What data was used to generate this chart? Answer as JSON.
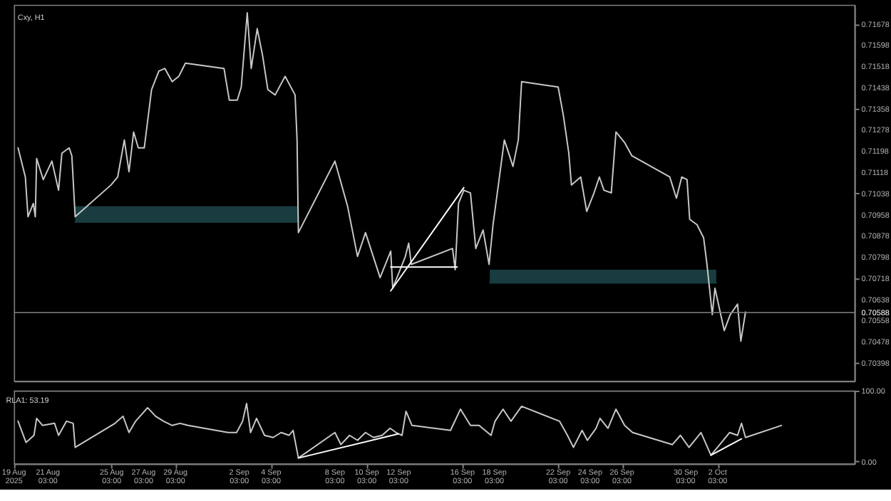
{
  "chart_data": [
    {
      "type": "line",
      "title": "Cxy, H1",
      "xlim": [
        "2025-08-19T00:00",
        "2025-10-10T17:00"
      ],
      "ylim": [
        0.7033,
        0.7175
      ],
      "yticks": [
        0.71678,
        0.71598,
        0.71518,
        0.71438,
        0.71358,
        0.71278,
        0.71198,
        0.71118,
        0.71038,
        0.70958,
        0.70878,
        0.70798,
        0.70718,
        0.70638,
        0.70558,
        0.70478,
        0.70398
      ],
      "tick_labels": "y",
      "grid": false,
      "ref_lines": [
        {
          "axis": "y",
          "value": 0.70588,
          "label": "0.70588",
          "color": "#808080"
        }
      ],
      "series": [
        {
          "color": "#183c40",
          "x": [
            "2025-08-22T20:00",
            "2025-09-05T20:00"
          ],
          "values": [
            0.7093,
            0.7093
          ],
          "lower": [
            0.7093,
            0.7093
          ],
          "upper": [
            0.7099,
            0.7099
          ]
        },
        {
          "color": "#183c40",
          "x": [
            "2025-09-17T20:00",
            "2025-10-02T01:00"
          ],
          "values": [
            0.707,
            0.707
          ],
          "lower": [
            0.707,
            0.707
          ],
          "upper": [
            0.7075,
            0.7075
          ]
        },
        {
          "color": "#c8c8c8",
          "x": [
            "2025-08-19T06:00",
            "2025-08-19T17:00",
            "2025-08-19T21:00",
            "2025-08-20T05:00",
            "2025-08-20T08:00",
            "2025-08-20T10:00",
            "2025-08-20T20:00",
            "2025-08-21T09:00",
            "2025-08-21T19:00",
            "2025-08-22T00:00",
            "2025-08-22T11:00",
            "2025-08-22T15:00",
            "2025-08-22T20:00",
            "2025-08-25T02:00",
            "2025-08-25T12:00",
            "2025-08-25T22:00",
            "2025-08-26T05:00",
            "2025-08-26T12:00",
            "2025-08-26T19:00",
            "2025-08-27T04:00",
            "2025-08-27T15:00",
            "2025-08-28T02:00",
            "2025-08-28T11:00",
            "2025-08-28T22:00",
            "2025-08-29T08:00",
            "2025-08-29T18:00",
            "2025-09-01T04:00",
            "2025-09-01T12:00",
            "2025-09-02T00:00",
            "2025-09-02T06:00",
            "2025-09-02T15:00",
            "2025-09-02T21:00",
            "2025-09-03T06:00",
            "2025-09-03T14:00",
            "2025-09-03T22:00",
            "2025-09-04T09:00",
            "2025-09-05T00:00",
            "2025-09-05T15:00",
            "2025-09-05T18:00",
            "2025-09-05T20:00",
            "2025-09-08T03:00",
            "2025-09-08T22:00",
            "2025-09-09T13:00",
            "2025-09-10T01:00",
            "2025-09-10T23:00",
            "2025-09-11T15:00",
            "2025-09-11T18:00",
            "2025-09-12T13:00",
            "2025-09-12T18:00",
            "2025-09-12T22:00",
            "2025-09-15T12:00",
            "2025-09-15T16:00",
            "2025-09-15T21:00",
            "2025-09-16T05:00",
            "2025-09-16T15:00",
            "2025-09-16T23:00",
            "2025-09-17T10:00",
            "2025-09-17T19:00",
            "2025-09-18T01:00",
            "2025-09-18T09:00",
            "2025-09-18T18:00",
            "2025-09-19T07:00",
            "2025-09-19T15:00",
            "2025-09-19T20:00",
            "2025-09-22T03:00",
            "2025-09-22T11:00",
            "2025-09-22T19:00",
            "2025-09-22T23:00",
            "2025-09-23T13:00",
            "2025-09-23T22:00",
            "2025-09-24T09:00",
            "2025-09-24T17:00",
            "2025-09-25T00:00",
            "2025-09-25T11:00",
            "2025-09-25T18:00",
            "2025-09-26T07:00",
            "2025-09-26T18:00",
            "2025-09-29T03:00",
            "2025-09-29T13:00",
            "2025-09-29T21:00",
            "2025-09-30T05:00",
            "2025-09-30T09:00",
            "2025-09-30T20:00",
            "2025-10-01T06:00",
            "2025-10-01T11:00",
            "2025-10-01T19:00",
            "2025-10-01T23:00",
            "2025-10-02T13:00",
            "2025-10-02T22:00",
            "2025-10-03T09:00",
            "2025-10-03T14:00",
            "2025-10-03T21:00"
          ],
          "values": [
            0.7121,
            0.711,
            0.7095,
            0.71,
            0.7095,
            0.7117,
            0.7109,
            0.7116,
            0.7105,
            0.7119,
            0.7121,
            0.7118,
            0.7095,
            0.7107,
            0.711,
            0.7124,
            0.7112,
            0.7127,
            0.7121,
            0.7121,
            0.7143,
            0.715,
            0.7151,
            0.7146,
            0.7148,
            0.7153,
            0.7151,
            0.7139,
            0.7139,
            0.7144,
            0.7172,
            0.7151,
            0.7166,
            0.7156,
            0.7143,
            0.7141,
            0.7148,
            0.7141,
            0.7124,
            0.7089,
            0.7116,
            0.7099,
            0.708,
            0.7089,
            0.7072,
            0.7082,
            0.7068,
            0.708,
            0.7085,
            0.7077,
            0.7083,
            0.7075,
            0.71,
            0.7105,
            0.7104,
            0.7083,
            0.709,
            0.7077,
            0.7092,
            0.7107,
            0.7124,
            0.7114,
            0.7124,
            0.7146,
            0.7144,
            0.7133,
            0.7119,
            0.7107,
            0.711,
            0.7097,
            0.7104,
            0.711,
            0.7105,
            0.7104,
            0.7127,
            0.7123,
            0.7118,
            0.711,
            0.7102,
            0.711,
            0.7109,
            0.7094,
            0.7092,
            0.7087,
            0.7077,
            0.7058,
            0.7068,
            0.7052,
            0.7058,
            0.7062,
            0.7048,
            0.7059
          ]
        },
        {
          "color": "#ffffff",
          "x": [
            "2025-09-11T15:00",
            "2025-09-16T05:00"
          ],
          "values": [
            0.7067,
            0.7106
          ]
        },
        {
          "color": "#ffffff",
          "x": [
            "2025-09-11T15:00",
            "2025-09-15T19:00"
          ],
          "values": [
            0.7076,
            0.7076
          ]
        }
      ]
    },
    {
      "type": "line",
      "title": "RLA1: 53.19",
      "xlim": [
        "2025-08-19T00:00",
        "2025-10-10T17:00"
      ],
      "ylim": [
        -3,
        100
      ],
      "yticks": [
        {
          "value": 100,
          "label": "100.00"
        },
        {
          "value": 0,
          "label": "0.00"
        }
      ],
      "xticks": [
        {
          "value": "2025-08-19T00:00",
          "label": "19 Aug 2025"
        },
        {
          "value": "2025-08-21T03:00",
          "label": "21 Aug 03:00"
        },
        {
          "value": "2025-08-25T03:00",
          "label": "25 Aug 03:00"
        },
        {
          "value": "2025-08-27T03:00",
          "label": "27 Aug 03:00"
        },
        {
          "value": "2025-08-29T03:00",
          "label": "29 Aug 03:00"
        },
        {
          "value": "2025-09-02T03:00",
          "label": "2 Sep 03:00"
        },
        {
          "value": "2025-09-04T03:00",
          "label": "4 Sep 03:00"
        },
        {
          "value": "2025-09-08T03:00",
          "label": "8 Sep 03:00"
        },
        {
          "value": "2025-09-10T03:00",
          "label": "10 Sep 03:00"
        },
        {
          "value": "2025-09-12T03:00",
          "label": "12 Sep 03:00"
        },
        {
          "value": "2025-09-16T03:00",
          "label": "16 Sep 03:00"
        },
        {
          "value": "2025-09-18T03:00",
          "label": "18 Sep 03:00"
        },
        {
          "value": "2025-09-22T03:00",
          "label": "22 Sep 03:00"
        },
        {
          "value": "2025-09-24T03:00",
          "label": "24 Sep 03:00"
        },
        {
          "value": "2025-09-26T03:00",
          "label": "26 Sep 03:00"
        },
        {
          "value": "2025-09-30T03:00",
          "label": "30 Sep 03:00"
        },
        {
          "value": "2025-10-02T03:00",
          "label": "2 Oct 03:00"
        }
      ],
      "grid": false,
      "series": [
        {
          "color": "#c8c8c8",
          "x": [
            "2025-08-19T06:00",
            "2025-08-19T18:00",
            "2025-08-20T06:00",
            "2025-08-20T10:00",
            "2025-08-20T19:00",
            "2025-08-21T13:00",
            "2025-08-21T19:00",
            "2025-08-22T07:00",
            "2025-08-22T17:00",
            "2025-08-22T20:00",
            "2025-08-25T08:00",
            "2025-08-25T20:00",
            "2025-08-26T05:00",
            "2025-08-26T15:00",
            "2025-08-27T09:00",
            "2025-08-27T21:00",
            "2025-08-28T09:00",
            "2025-08-28T22:00",
            "2025-08-29T10:00",
            "2025-08-29T22:00",
            "2025-09-01T10:00",
            "2025-09-01T23:00",
            "2025-09-02T08:00",
            "2025-09-02T14:00",
            "2025-09-02T20:00",
            "2025-09-03T05:00",
            "2025-09-03T17:00",
            "2025-09-04T06:00",
            "2025-09-04T18:00",
            "2025-09-05T06:00",
            "2025-09-05T12:00",
            "2025-09-05T20:00",
            "2025-09-08T03:00",
            "2025-09-08T12:00",
            "2025-09-09T01:00",
            "2025-09-09T13:00",
            "2025-09-10T01:00",
            "2025-09-10T13:00",
            "2025-09-11T02:00",
            "2025-09-11T14:00",
            "2025-09-11T23:00",
            "2025-09-12T08:00",
            "2025-09-12T14:00",
            "2025-09-12T23:00",
            "2025-09-15T09:00",
            "2025-09-16T00:00",
            "2025-09-16T15:00",
            "2025-09-17T04:00",
            "2025-09-17T22:00",
            "2025-09-18T04:00",
            "2025-09-18T16:00",
            "2025-09-19T04:00",
            "2025-09-19T20:00",
            "2025-09-22T05:00",
            "2025-09-22T17:00",
            "2025-09-23T02:00",
            "2025-09-23T15:00",
            "2025-09-23T23:00",
            "2025-09-24T12:00",
            "2025-09-24T18:00",
            "2025-09-25T06:00",
            "2025-09-25T18:00",
            "2025-09-26T07:00",
            "2025-09-26T19:00",
            "2025-09-29T07:00",
            "2025-09-29T19:00",
            "2025-09-30T08:00",
            "2025-10-01T02:00",
            "2025-10-01T17:00",
            "2025-10-02T09:00",
            "2025-10-02T21:00",
            "2025-10-03T09:00",
            "2025-10-03T15:00",
            "2025-10-03T21:00",
            "2025-10-06T03:00"
          ],
          "values": [
            57,
            27,
            37,
            61,
            51,
            54,
            37,
            57,
            54,
            20,
            54,
            64,
            41,
            57,
            76,
            64,
            57,
            51,
            54,
            51,
            41,
            41,
            57,
            82,
            41,
            61,
            37,
            34,
            41,
            37,
            44,
            5,
            41,
            24,
            37,
            30,
            41,
            34,
            37,
            47,
            41,
            37,
            71,
            51,
            44,
            74,
            51,
            51,
            37,
            57,
            74,
            57,
            78,
            57,
            37,
            20,
            44,
            30,
            47,
            61,
            47,
            74,
            51,
            41,
            24,
            37,
            20,
            41,
            9,
            27,
            41,
            37,
            54,
            34,
            51
          ]
        },
        {
          "color": "#ffffff",
          "x": [
            "2025-09-05T20:00",
            "2025-09-12T02:00"
          ],
          "values": [
            5,
            39
          ]
        },
        {
          "color": "#ffffff",
          "x": [
            "2025-10-01T17:00",
            "2025-10-03T15:00"
          ],
          "values": [
            9,
            32
          ]
        }
      ]
    }
  ]
}
